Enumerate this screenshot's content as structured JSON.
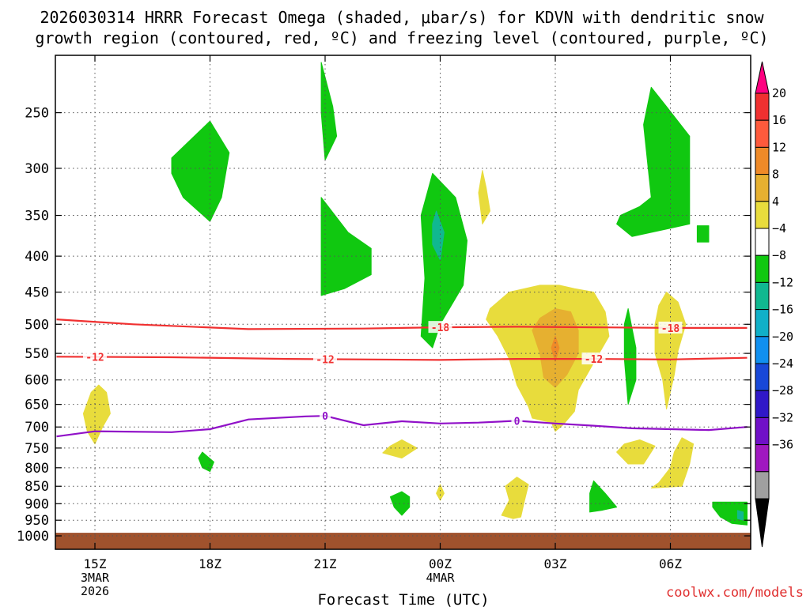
{
  "chart_data": {
    "type": "contour",
    "title_line1": "2026030314 HRRR Forecast Omega (shaded, μbar/s) for KDVN with dendritic snow",
    "title_line2": "growth region (contoured, red, ºC) and freezing level (contoured, purple, ºC)",
    "xlabel": "Forecast Time (UTC)",
    "credit": "coolwx.com/models",
    "x_ticks": [
      {
        "hour": 15,
        "label": "15Z",
        "sub1": "3MAR",
        "sub2": "2026"
      },
      {
        "hour": 18,
        "label": "18Z",
        "sub1": "",
        "sub2": ""
      },
      {
        "hour": 21,
        "label": "21Z",
        "sub1": "",
        "sub2": ""
      },
      {
        "hour": 24,
        "label": "00Z",
        "sub1": "4MAR",
        "sub2": ""
      },
      {
        "hour": 27,
        "label": "03Z",
        "sub1": "",
        "sub2": ""
      },
      {
        "hour": 30,
        "label": "06Z",
        "sub1": "",
        "sub2": ""
      }
    ],
    "xlim_hours": [
      14,
      32
    ],
    "y_ticks_hpa": [
      250,
      300,
      350,
      400,
      450,
      500,
      550,
      600,
      650,
      700,
      750,
      800,
      850,
      900,
      950,
      1000
    ],
    "ylim_hpa": [
      200,
      1015
    ],
    "colorbar": {
      "labels": [
        "20",
        "16",
        "12",
        "8",
        "4",
        "−4",
        "−8",
        "−12",
        "−16",
        "−20",
        "−24",
        "−28",
        "−32",
        "−36"
      ],
      "colors": [
        "#ff0080",
        "#f03030",
        "#ff5a3c",
        "#ef8a28",
        "#e6b030",
        "#e8dc3c",
        "#ffffff",
        "#10c810",
        "#10b890",
        "#10b0c8",
        "#1090f0",
        "#1848d8",
        "#3018c8",
        "#7010c8",
        "#a018c0",
        "#a0a0a0",
        "#000000"
      ]
    },
    "omega_regions": [
      {
        "level": -8,
        "color": "#10c810",
        "points": [
          [
            20.9,
            212
          ],
          [
            21.2,
            245
          ],
          [
            21.3,
            270
          ],
          [
            21.0,
            292
          ],
          [
            20.9,
            250
          ]
        ]
      },
      {
        "level": -8,
        "color": "#10c810",
        "points": [
          [
            18.0,
            257
          ],
          [
            18.5,
            285
          ],
          [
            18.3,
            330
          ],
          [
            18.0,
            357
          ],
          [
            17.3,
            330
          ],
          [
            17.0,
            305
          ],
          [
            17.0,
            290
          ]
        ]
      },
      {
        "level": -8,
        "color": "#10c810",
        "points": [
          [
            20.9,
            330
          ],
          [
            21.6,
            370
          ],
          [
            22.2,
            390
          ],
          [
            22.2,
            425
          ],
          [
            21.5,
            445
          ],
          [
            20.9,
            455
          ],
          [
            20.9,
            400
          ]
        ]
      },
      {
        "level": -8,
        "color": "#10c810",
        "points": [
          [
            23.8,
            305
          ],
          [
            24.4,
            330
          ],
          [
            24.7,
            380
          ],
          [
            24.6,
            440
          ],
          [
            24.0,
            500
          ],
          [
            23.8,
            540
          ],
          [
            23.5,
            520
          ],
          [
            23.6,
            430
          ],
          [
            23.5,
            350
          ]
        ]
      },
      {
        "level": -12,
        "color": "#10b890",
        "points": [
          [
            23.9,
            345
          ],
          [
            24.1,
            370
          ],
          [
            24.0,
            405
          ],
          [
            23.8,
            385
          ],
          [
            23.8,
            360
          ]
        ]
      },
      {
        "level": -8,
        "color": "#10c810",
        "points": [
          [
            29.5,
            230
          ],
          [
            29.9,
            245
          ],
          [
            30.5,
            270
          ],
          [
            30.5,
            360
          ],
          [
            30.0,
            365
          ],
          [
            29.0,
            375
          ],
          [
            28.6,
            360
          ],
          [
            28.7,
            350
          ],
          [
            29.2,
            340
          ],
          [
            29.5,
            330
          ],
          [
            29.3,
            260
          ]
        ]
      },
      {
        "level": -8,
        "color": "#10c810",
        "points": [
          [
            30.7,
            362
          ],
          [
            31.0,
            362
          ],
          [
            31.0,
            382
          ],
          [
            30.7,
            382
          ]
        ]
      },
      {
        "level": -8,
        "color": "#10c810",
        "points": [
          [
            28.9,
            475
          ],
          [
            29.1,
            540
          ],
          [
            29.1,
            600
          ],
          [
            28.9,
            650
          ],
          [
            28.8,
            560
          ],
          [
            28.8,
            500
          ]
        ]
      },
      {
        "level": -8,
        "color": "#10c810",
        "points": [
          [
            17.8,
            760
          ],
          [
            18.1,
            785
          ],
          [
            18.0,
            810
          ],
          [
            17.8,
            800
          ],
          [
            17.7,
            775
          ]
        ]
      },
      {
        "level": -8,
        "color": "#10c810",
        "points": [
          [
            23.0,
            865
          ],
          [
            23.2,
            880
          ],
          [
            23.2,
            910
          ],
          [
            23.0,
            935
          ],
          [
            22.8,
            910
          ],
          [
            22.7,
            880
          ]
        ]
      },
      {
        "level": -8,
        "color": "#10c810",
        "points": [
          [
            28.0,
            835
          ],
          [
            28.3,
            870
          ],
          [
            28.6,
            910
          ],
          [
            28.2,
            920
          ],
          [
            27.9,
            925
          ],
          [
            27.9,
            870
          ]
        ]
      },
      {
        "level": -8,
        "color": "#10c810",
        "points": [
          [
            31.1,
            895
          ],
          [
            32.0,
            895
          ],
          [
            32.0,
            965
          ],
          [
            31.6,
            960
          ],
          [
            31.3,
            940
          ],
          [
            31.1,
            910
          ]
        ]
      },
      {
        "level": -12,
        "color": "#10b890",
        "points": [
          [
            31.75,
            920
          ],
          [
            31.9,
            925
          ],
          [
            31.9,
            950
          ],
          [
            31.75,
            945
          ]
        ]
      },
      {
        "level": 4,
        "color": "#e8dc3c",
        "points": [
          [
            26.6,
            440
          ],
          [
            27.1,
            440
          ],
          [
            27.5,
            445
          ],
          [
            28.0,
            450
          ],
          [
            28.3,
            480
          ],
          [
            28.4,
            520
          ],
          [
            28.1,
            555
          ],
          [
            27.9,
            580
          ],
          [
            27.6,
            620
          ],
          [
            27.5,
            665
          ],
          [
            27.2,
            695
          ],
          [
            27.0,
            710
          ],
          [
            26.9,
            690
          ],
          [
            26.4,
            680
          ],
          [
            26.3,
            655
          ],
          [
            26.0,
            610
          ],
          [
            25.8,
            560
          ],
          [
            25.5,
            520
          ],
          [
            25.2,
            492
          ],
          [
            25.3,
            475
          ],
          [
            25.8,
            450
          ]
        ]
      },
      {
        "level": 8,
        "color": "#e6b030",
        "points": [
          [
            27.0,
            475
          ],
          [
            27.4,
            480
          ],
          [
            27.6,
            510
          ],
          [
            27.6,
            550
          ],
          [
            27.3,
            590
          ],
          [
            27.0,
            615
          ],
          [
            26.7,
            595
          ],
          [
            26.6,
            550
          ],
          [
            26.4,
            510
          ],
          [
            26.6,
            490
          ]
        ]
      },
      {
        "level": 12,
        "color": "#ef8a28",
        "points": [
          [
            27.0,
            520
          ],
          [
            27.1,
            540
          ],
          [
            27.0,
            565
          ],
          [
            26.9,
            540
          ]
        ]
      },
      {
        "level": 4,
        "color": "#e8dc3c",
        "points": [
          [
            29.9,
            450
          ],
          [
            30.2,
            465
          ],
          [
            30.4,
            500
          ],
          [
            30.2,
            545
          ],
          [
            30.1,
            590
          ],
          [
            29.9,
            660
          ],
          [
            29.8,
            600
          ],
          [
            29.6,
            550
          ],
          [
            29.6,
            500
          ],
          [
            29.7,
            470
          ]
        ]
      },
      {
        "level": 4,
        "color": "#e8dc3c",
        "points": [
          [
            15.1,
            610
          ],
          [
            15.3,
            625
          ],
          [
            15.4,
            670
          ],
          [
            15.2,
            700
          ],
          [
            15.0,
            740
          ],
          [
            14.8,
            710
          ],
          [
            14.7,
            670
          ],
          [
            14.9,
            625
          ]
        ]
      },
      {
        "level": 4,
        "color": "#e8dc3c",
        "points": [
          [
            25.1,
            302
          ],
          [
            25.2,
            320
          ],
          [
            25.3,
            345
          ],
          [
            25.1,
            360
          ],
          [
            25.0,
            325
          ]
        ]
      },
      {
        "level": 4,
        "color": "#e8dc3c",
        "points": [
          [
            23.0,
            730
          ],
          [
            23.4,
            750
          ],
          [
            23.0,
            775
          ],
          [
            22.5,
            762
          ],
          [
            22.7,
            745
          ]
        ]
      },
      {
        "level": 4,
        "color": "#e8dc3c",
        "points": [
          [
            29.2,
            730
          ],
          [
            29.6,
            745
          ],
          [
            29.3,
            790
          ],
          [
            28.9,
            790
          ],
          [
            28.6,
            760
          ],
          [
            28.8,
            740
          ]
        ]
      },
      {
        "level": 4,
        "color": "#e8dc3c",
        "points": [
          [
            30.3,
            725
          ],
          [
            30.6,
            740
          ],
          [
            30.5,
            790
          ],
          [
            30.3,
            850
          ],
          [
            29.5,
            855
          ],
          [
            29.7,
            840
          ],
          [
            30.0,
            800
          ],
          [
            30.1,
            760
          ]
        ]
      },
      {
        "level": 4,
        "color": "#e8dc3c",
        "points": [
          [
            26.0,
            825
          ],
          [
            26.3,
            845
          ],
          [
            26.2,
            890
          ],
          [
            26.1,
            940
          ],
          [
            25.9,
            945
          ],
          [
            25.6,
            935
          ],
          [
            25.8,
            890
          ],
          [
            25.7,
            850
          ]
        ]
      },
      {
        "level": 4,
        "color": "#e8dc3c",
        "points": [
          [
            24.0,
            845
          ],
          [
            24.1,
            870
          ],
          [
            24.0,
            890
          ],
          [
            23.9,
            870
          ]
        ]
      }
    ],
    "isotherms": [
      {
        "temp_c": -18,
        "label": "-18",
        "color": "#f03030",
        "points": [
          [
            14,
            492
          ],
          [
            16,
            500
          ],
          [
            19,
            508
          ],
          [
            22,
            507
          ],
          [
            24,
            505
          ],
          [
            26,
            504
          ],
          [
            28,
            505
          ],
          [
            30,
            506
          ],
          [
            32,
            506
          ]
        ],
        "labels_at_hours": [
          24,
          30
        ]
      },
      {
        "temp_c": -12,
        "label": "-12",
        "color": "#f03030",
        "points": [
          [
            14,
            556
          ],
          [
            17,
            557
          ],
          [
            20,
            560
          ],
          [
            24,
            562
          ],
          [
            26,
            560
          ],
          [
            28,
            560
          ],
          [
            30,
            561
          ],
          [
            32,
            558
          ]
        ],
        "labels_at_hours": [
          15,
          21,
          28
        ]
      },
      {
        "temp_c": 0,
        "label": "0",
        "color": "#9010c8",
        "points": [
          [
            14,
            722
          ],
          [
            15,
            710
          ],
          [
            17,
            712
          ],
          [
            18,
            705
          ],
          [
            19,
            683
          ],
          [
            20.5,
            676
          ],
          [
            21,
            675
          ],
          [
            22,
            696
          ],
          [
            23,
            687
          ],
          [
            24,
            692
          ],
          [
            25,
            690
          ],
          [
            26,
            686
          ],
          [
            27,
            692
          ],
          [
            28,
            697
          ],
          [
            29,
            703
          ],
          [
            30,
            705
          ],
          [
            31,
            707
          ],
          [
            32,
            700
          ]
        ],
        "labels_at_hours": [
          21,
          26
        ]
      }
    ],
    "surface_fill_hpa": [
      990,
      1015
    ],
    "surface_color": "#a0522d",
    "grid": true
  }
}
